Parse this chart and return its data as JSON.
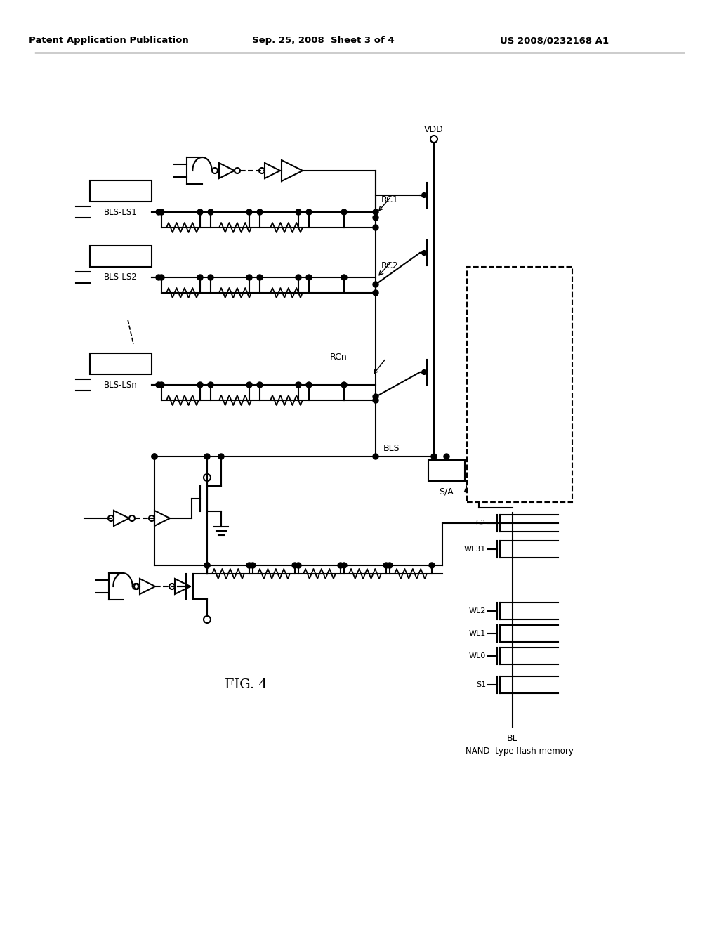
{
  "header_left": "Patent Application Publication",
  "header_center": "Sep. 25, 2008  Sheet 3 of 4",
  "header_right": "US 2008/0232168 A1",
  "fig_label": "FIG. 4",
  "flash_label": "NAND  type flash memory",
  "bg_color": "#ffffff",
  "line_color": "#000000",
  "fig_width": 10.24,
  "fig_height": 13.2
}
